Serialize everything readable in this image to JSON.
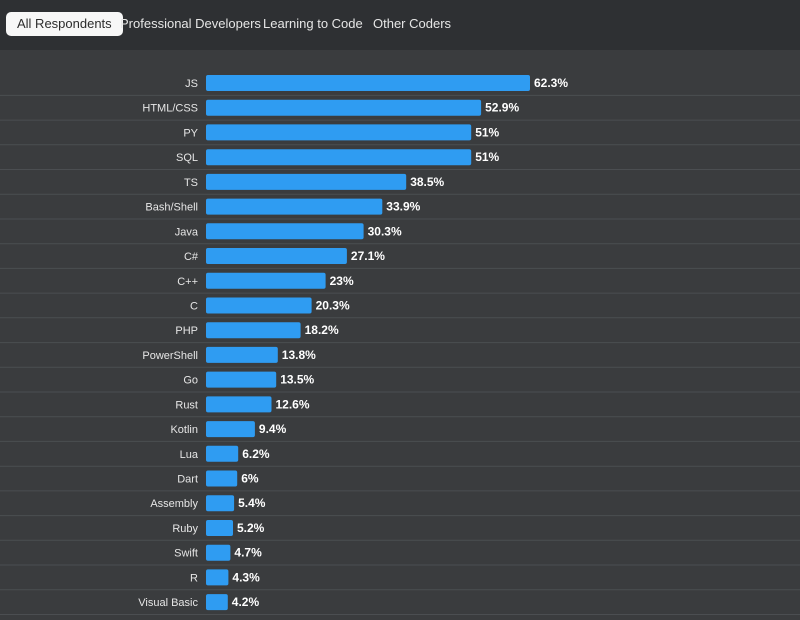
{
  "tabs": [
    {
      "label": "All Respondents",
      "active": true
    },
    {
      "label": "Professional Developers",
      "active": false
    },
    {
      "label": "Learning to Code",
      "active": false
    },
    {
      "label": "Other Coders",
      "active": false
    }
  ],
  "colors": {
    "bar": "#2f9cf2",
    "background": "#3a3c3e",
    "tabbar": "#2e3033",
    "label": "#e6e6e6",
    "value": "#ffffff",
    "rowline": "#4b4e51"
  },
  "chart_data": {
    "type": "bar",
    "orientation": "horizontal",
    "title": "",
    "xlabel": "",
    "ylabel": "",
    "value_suffix": "%",
    "xlim": [
      0,
      100
    ],
    "grid": false,
    "categories": [
      "JS",
      "HTML/CSS",
      "PY",
      "SQL",
      "TS",
      "Bash/Shell",
      "Java",
      "C#",
      "C++",
      "C",
      "PHP",
      "PowerShell",
      "Go",
      "Rust",
      "Kotlin",
      "Lua",
      "Dart",
      "Assembly",
      "Ruby",
      "Swift",
      "R",
      "Visual Basic"
    ],
    "values": [
      62.3,
      52.9,
      51,
      51,
      38.5,
      33.9,
      30.3,
      27.1,
      23,
      20.3,
      18.2,
      13.8,
      13.5,
      12.6,
      9.4,
      6.2,
      6,
      5.4,
      5.2,
      4.7,
      4.3,
      4.2
    ],
    "value_labels": [
      "62.3%",
      "52.9%",
      "51%",
      "51%",
      "38.5%",
      "33.9%",
      "30.3%",
      "27.1%",
      "23%",
      "20.3%",
      "18.2%",
      "13.8%",
      "13.5%",
      "12.6%",
      "9.4%",
      "6.2%",
      "6%",
      "5.4%",
      "5.2%",
      "4.7%",
      "4.3%",
      "4.2%"
    ]
  }
}
